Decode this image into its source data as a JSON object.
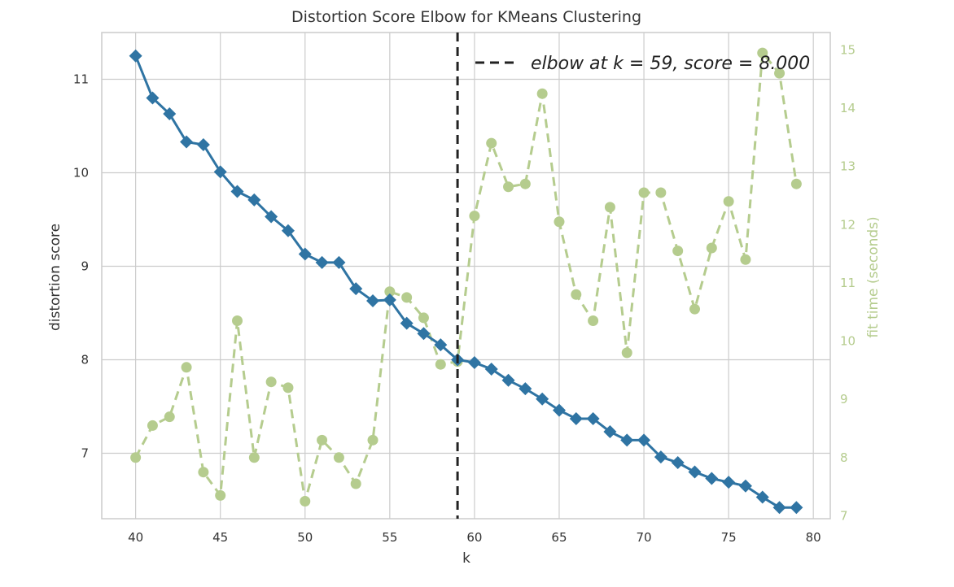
{
  "chart_data": {
    "type": "line",
    "title": "Distortion Score Elbow for KMeans Clustering",
    "xlabel": "k",
    "ylabel": "distortion score",
    "y2label": "fit time (seconds)",
    "xlim": [
      38,
      81
    ],
    "ylim": [
      6.3,
      11.5
    ],
    "y2lim": [
      6.95,
      15.3
    ],
    "x_ticks": [
      40,
      45,
      50,
      55,
      60,
      65,
      70,
      75,
      80
    ],
    "y_ticks": [
      7,
      8,
      9,
      10,
      11
    ],
    "y2_ticks": [
      7,
      8,
      9,
      10,
      11,
      12,
      13,
      14,
      15
    ],
    "grid": true,
    "legend_text": "elbow at k = 59, score = 8.000",
    "elbow": {
      "k": 59,
      "score": 8.0
    },
    "colors": {
      "distortion": "#2f74a3",
      "fit_time": "#b5cc8e",
      "elbow": "#222222",
      "grid": "#cccccc"
    },
    "x": [
      40,
      41,
      42,
      43,
      44,
      45,
      46,
      47,
      48,
      49,
      50,
      51,
      52,
      53,
      54,
      55,
      56,
      57,
      58,
      59,
      60,
      61,
      62,
      63,
      64,
      65,
      66,
      67,
      68,
      69,
      70,
      71,
      72,
      73,
      74,
      75,
      76,
      77,
      78,
      79
    ],
    "series": [
      {
        "name": "distortion score",
        "axis": "left",
        "values": [
          11.25,
          10.8,
          10.63,
          10.33,
          10.3,
          10.01,
          9.8,
          9.71,
          9.53,
          9.38,
          9.13,
          9.04,
          9.04,
          8.76,
          8.63,
          8.64,
          8.39,
          8.28,
          8.16,
          8.0,
          7.97,
          7.9,
          7.78,
          7.69,
          7.58,
          7.46,
          7.37,
          7.37,
          7.23,
          7.14,
          7.14,
          6.96,
          6.9,
          6.8,
          6.73,
          6.69,
          6.65,
          6.53,
          6.42,
          6.42
        ]
      },
      {
        "name": "fit time (seconds)",
        "axis": "right",
        "values": [
          8.0,
          8.55,
          8.7,
          9.55,
          7.75,
          7.35,
          10.35,
          8.0,
          9.3,
          9.2,
          7.25,
          8.3,
          8.0,
          7.55,
          8.3,
          10.85,
          10.75,
          10.4,
          9.6,
          9.65,
          12.15,
          13.4,
          12.65,
          12.7,
          14.25,
          12.05,
          10.8,
          10.35,
          12.3,
          9.8,
          12.55,
          12.55,
          11.55,
          10.55,
          11.6,
          12.4,
          11.4,
          14.95,
          14.6,
          12.7
        ]
      }
    ]
  }
}
